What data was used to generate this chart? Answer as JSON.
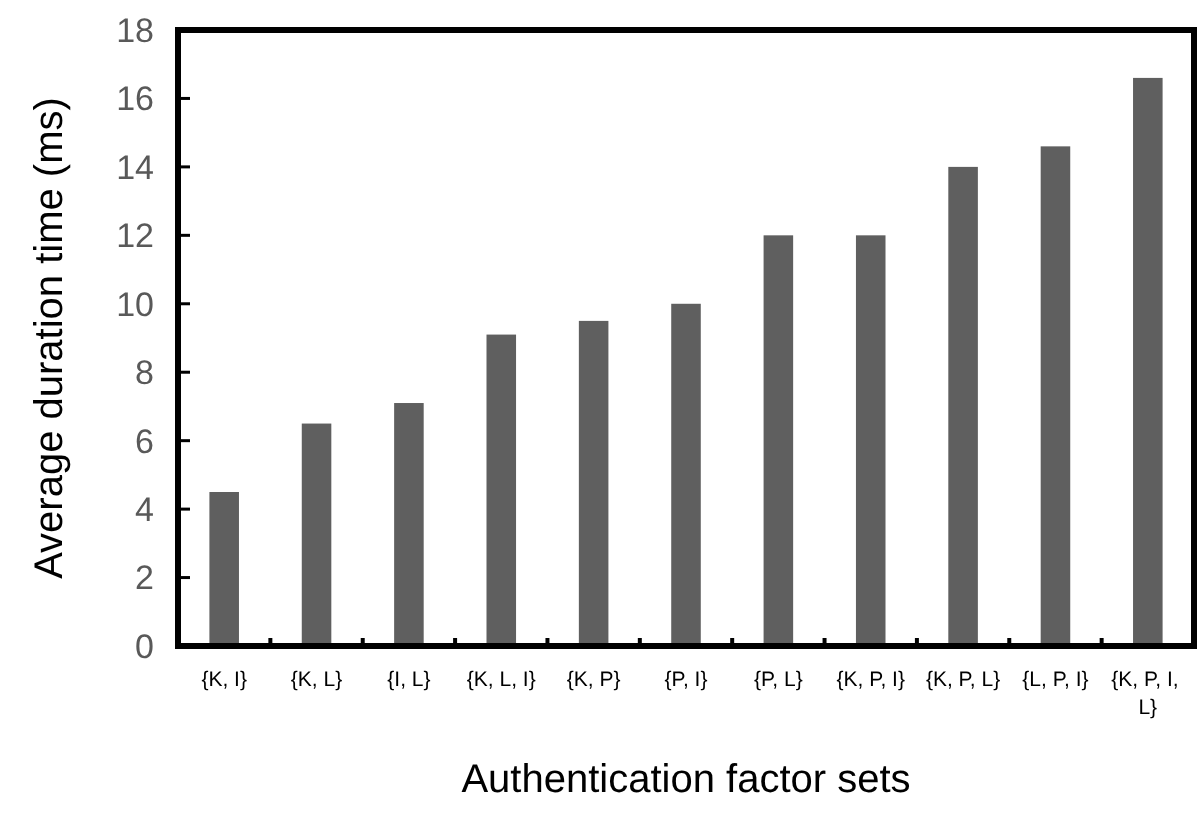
{
  "chart_data": {
    "type": "bar",
    "xlabel": "Authentication factor sets",
    "ylabel": "Average duration time (ms)",
    "categories": [
      "{K, I}",
      "{K, L}",
      "{I, L}",
      "{K, L, I}",
      "{K, P}",
      "{P, I}",
      "{P, L}",
      "{K, P, I}",
      "{K, P, L}",
      "{L, P, I}",
      "{K, P, I, L}"
    ],
    "values": [
      4.5,
      6.5,
      7.1,
      9.1,
      9.5,
      10.0,
      12.0,
      12.0,
      14.0,
      14.6,
      16.6
    ],
    "color": "#5f5f5f",
    "ylim": [
      0,
      18
    ],
    "yticks": [
      0,
      2,
      4,
      6,
      8,
      10,
      12,
      14,
      16,
      18
    ],
    "grid": false
  }
}
